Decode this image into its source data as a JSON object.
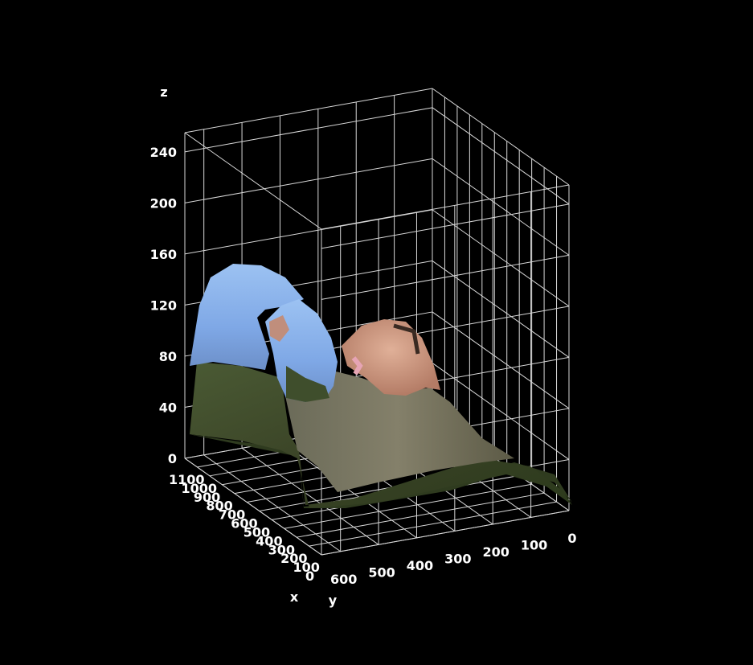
{
  "chart_data": {
    "type": "surface",
    "title": "",
    "xlabel": "x",
    "ylabel": "y",
    "zlabel": "z",
    "xlim": [
      0,
      1100
    ],
    "ylim": [
      0,
      650
    ],
    "zlim": [
      0,
      255
    ],
    "x_ticks": [
      "0",
      "100",
      "200",
      "300",
      "400",
      "500",
      "600",
      "700",
      "800",
      "900",
      "1000",
      "1100"
    ],
    "y_ticks": [
      "0",
      "100",
      "200",
      "300",
      "400",
      "500",
      "600"
    ],
    "z_ticks": [
      "0",
      "40",
      "80",
      "120",
      "160",
      "200",
      "240"
    ],
    "grid": true,
    "surface_texture": "photographic image (blue shirt, face, green foliage)",
    "colors": {
      "background": "#000000",
      "grid": "#d8d8d8",
      "text": "#ffffff",
      "shirt": "#8cb4ec",
      "skin": "#c99a86",
      "foliage": "#3b4a2a"
    }
  }
}
